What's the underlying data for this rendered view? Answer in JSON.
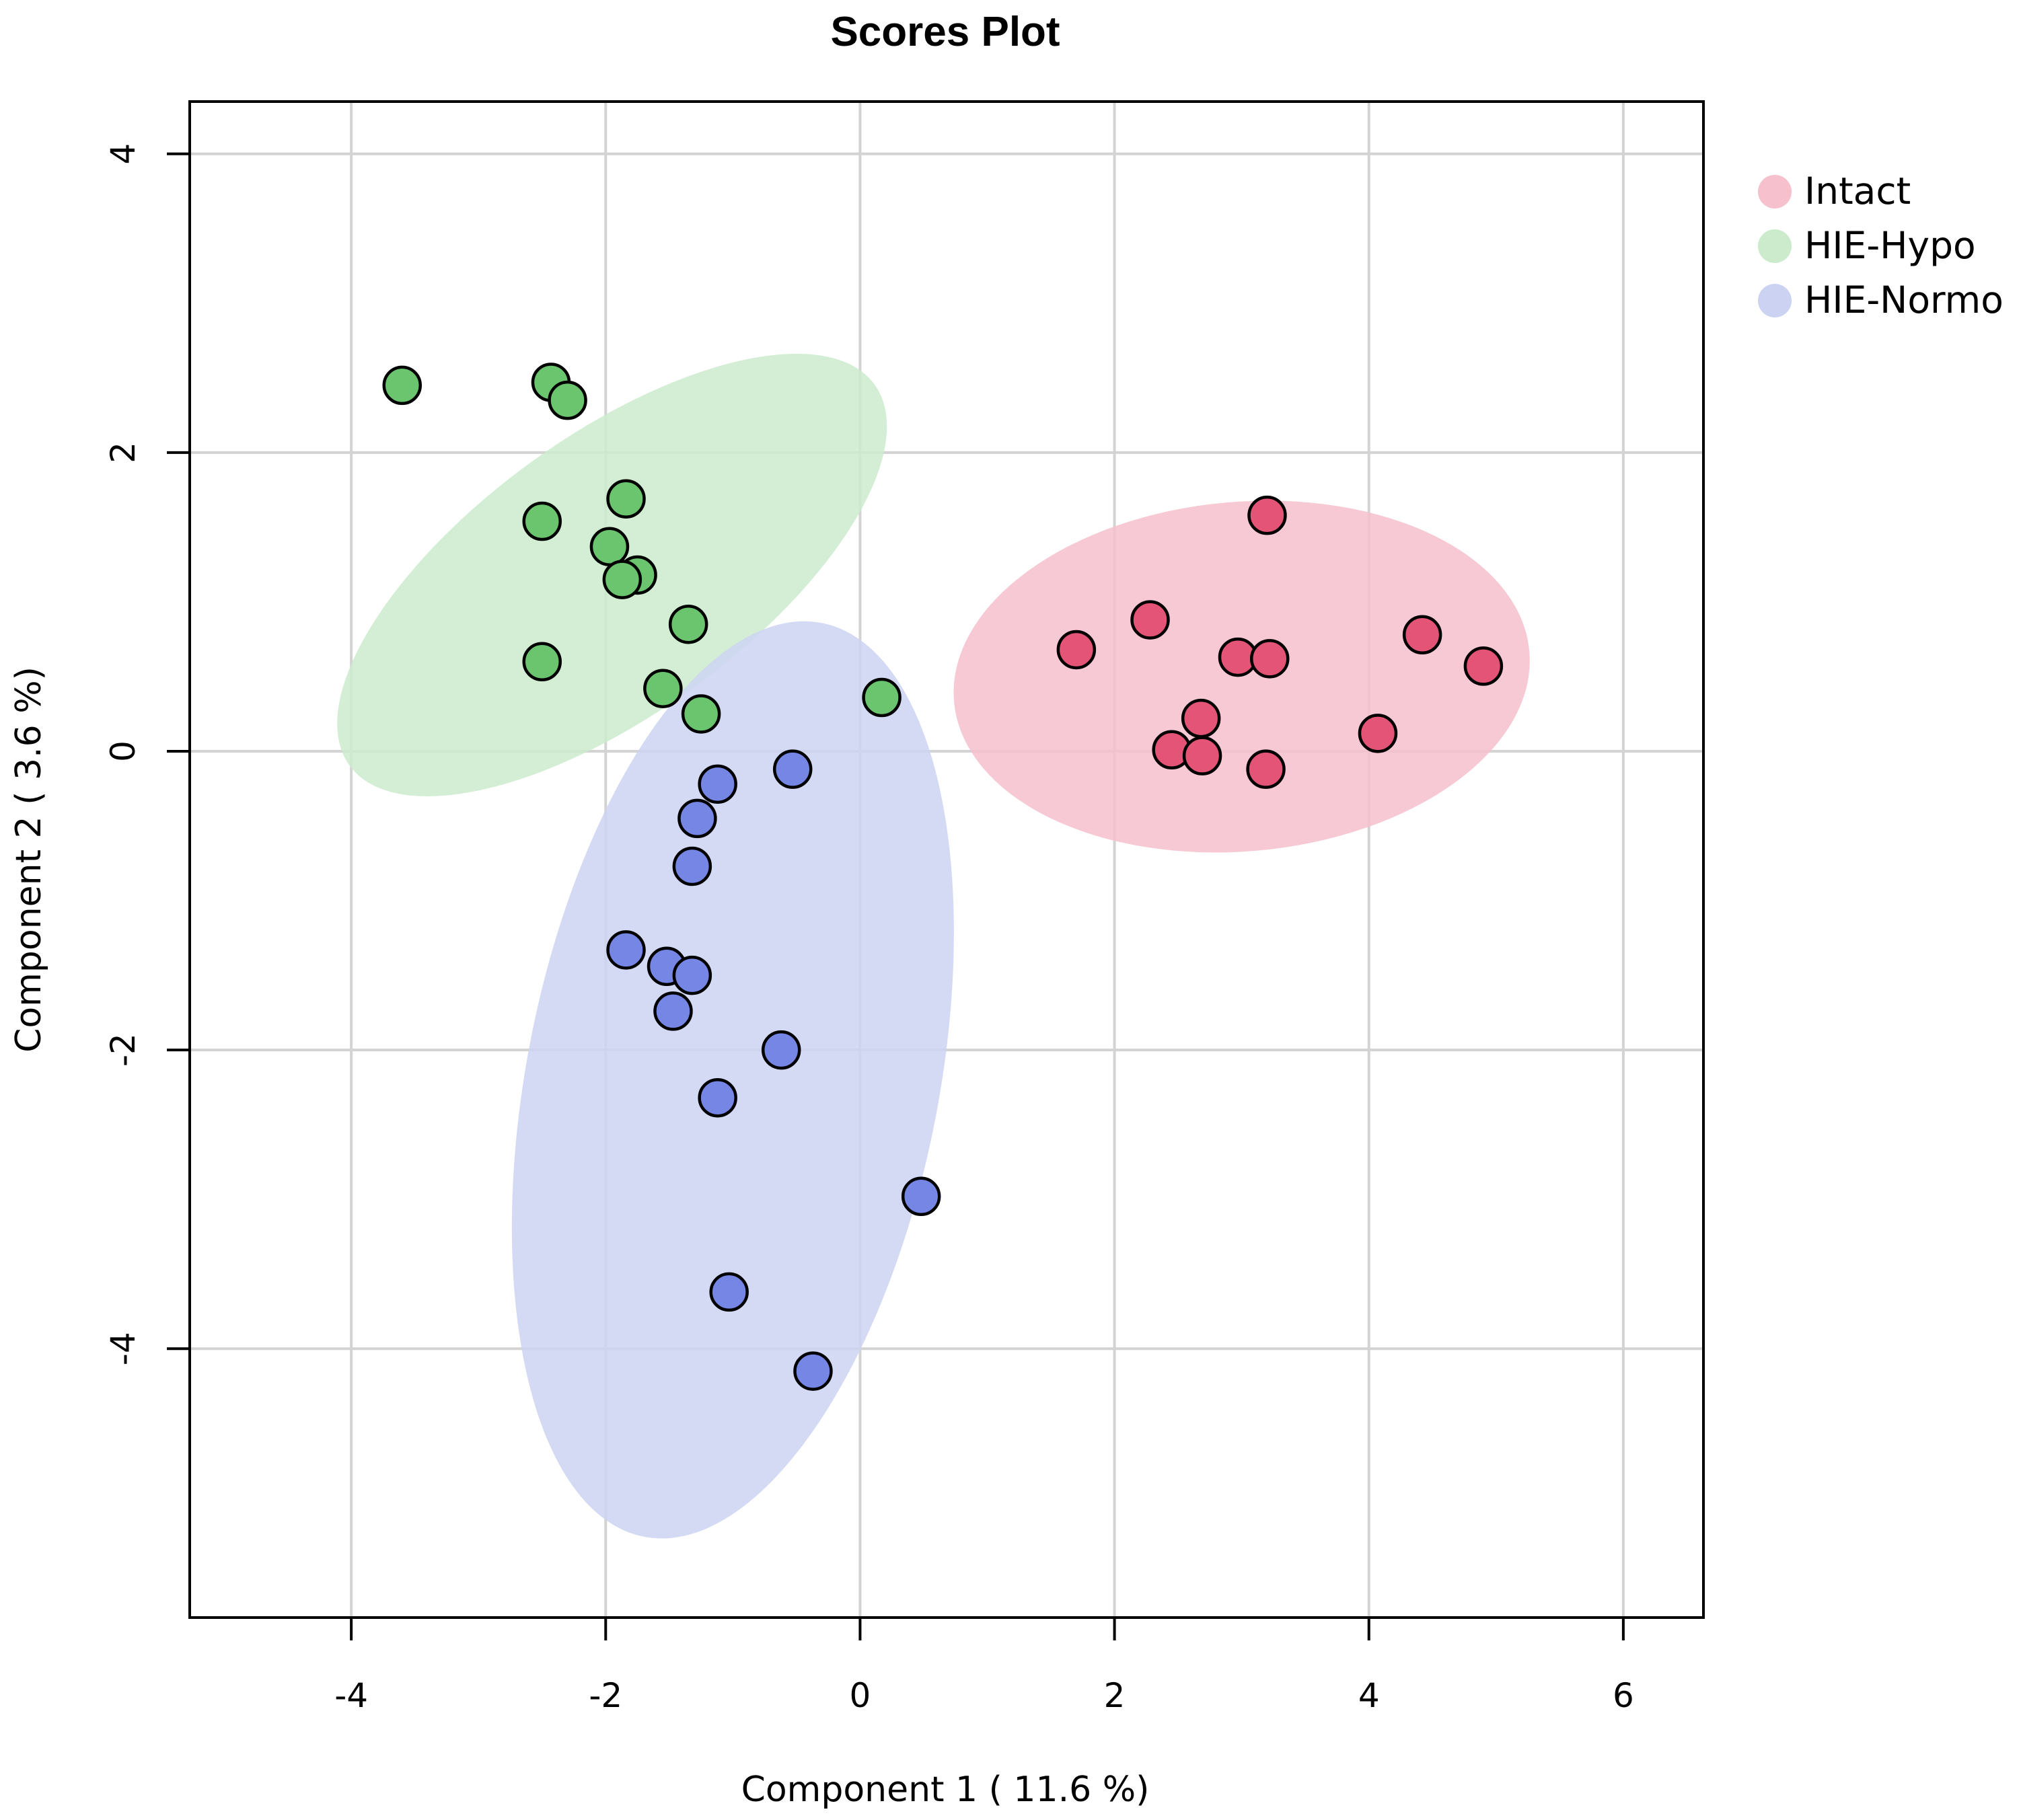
{
  "chart_data": {
    "type": "scatter",
    "title": "Scores Plot",
    "xlabel": "Component 1 ( 11.6 %)",
    "ylabel": "Component 2 ( 3.6 %)",
    "xlim": [
      -5.27,
      6.63
    ],
    "ylim": [
      -5.8,
      4.35
    ],
    "xticks": [
      -4,
      -2,
      0,
      2,
      4,
      6
    ],
    "yticks": [
      -4,
      -2,
      0,
      2,
      4
    ],
    "xtick_labels": [
      "-4",
      "-2",
      "0",
      "2",
      "4",
      "6"
    ],
    "ytick_labels": [
      "-4",
      "-2",
      "0",
      "2",
      "4"
    ],
    "grid": true,
    "legend_position": "top-right",
    "series": [
      {
        "name": "Intact",
        "color": "#e35477",
        "ellipse_color": "#f6c0cc",
        "ellipse": {
          "cx": 3.0,
          "cy": 0.5,
          "rx": 2.27,
          "ry": 1.17,
          "angle_deg": -5
        },
        "points": [
          {
            "x": 3.2,
            "y": 1.58
          },
          {
            "x": 2.28,
            "y": 0.88
          },
          {
            "x": 1.7,
            "y": 0.68
          },
          {
            "x": 2.97,
            "y": 0.63
          },
          {
            "x": 3.22,
            "y": 0.62
          },
          {
            "x": 4.42,
            "y": 0.78
          },
          {
            "x": 4.9,
            "y": 0.57
          },
          {
            "x": 2.68,
            "y": 0.22
          },
          {
            "x": 4.07,
            "y": 0.12
          },
          {
            "x": 2.45,
            "y": 0.01
          },
          {
            "x": 2.69,
            "y": -0.03
          },
          {
            "x": 3.19,
            "y": -0.12
          }
        ]
      },
      {
        "name": "HIE-Hypo",
        "color": "#6ac56e",
        "ellipse_color": "#cbebcc",
        "ellipse": {
          "cx": -1.95,
          "cy": 1.18,
          "rx": 2.55,
          "ry": 0.93,
          "angle_deg": -36
        },
        "points": [
          {
            "x": -3.6,
            "y": 2.45
          },
          {
            "x": -2.43,
            "y": 2.47
          },
          {
            "x": -2.3,
            "y": 2.35
          },
          {
            "x": -1.84,
            "y": 1.69
          },
          {
            "x": -2.5,
            "y": 1.54
          },
          {
            "x": -1.97,
            "y": 1.37
          },
          {
            "x": -1.75,
            "y": 1.18
          },
          {
            "x": -1.87,
            "y": 1.15
          },
          {
            "x": -1.35,
            "y": 0.85
          },
          {
            "x": -2.5,
            "y": 0.6
          },
          {
            "x": -1.55,
            "y": 0.42
          },
          {
            "x": -1.25,
            "y": 0.25
          },
          {
            "x": 0.17,
            "y": 0.36
          }
        ]
      },
      {
        "name": "HIE-Normo",
        "color": "#7586e4",
        "ellipse_color": "#ccd3f2",
        "ellipse": {
          "cx": -1.0,
          "cy": -2.2,
          "rx": 3.66,
          "ry": 1.38,
          "angle_deg": -79
        },
        "points": [
          {
            "x": -0.53,
            "y": -0.12
          },
          {
            "x": -1.12,
            "y": -0.22
          },
          {
            "x": -1.28,
            "y": -0.45
          },
          {
            "x": -1.32,
            "y": -0.77
          },
          {
            "x": -1.84,
            "y": -1.33
          },
          {
            "x": -1.52,
            "y": -1.44
          },
          {
            "x": -1.32,
            "y": -1.5
          },
          {
            "x": -1.47,
            "y": -1.74
          },
          {
            "x": -0.62,
            "y": -2.0
          },
          {
            "x": -1.12,
            "y": -2.32
          },
          {
            "x": 0.48,
            "y": -2.98
          },
          {
            "x": -1.03,
            "y": -3.62
          },
          {
            "x": -0.37,
            "y": -4.15
          }
        ]
      }
    ]
  }
}
